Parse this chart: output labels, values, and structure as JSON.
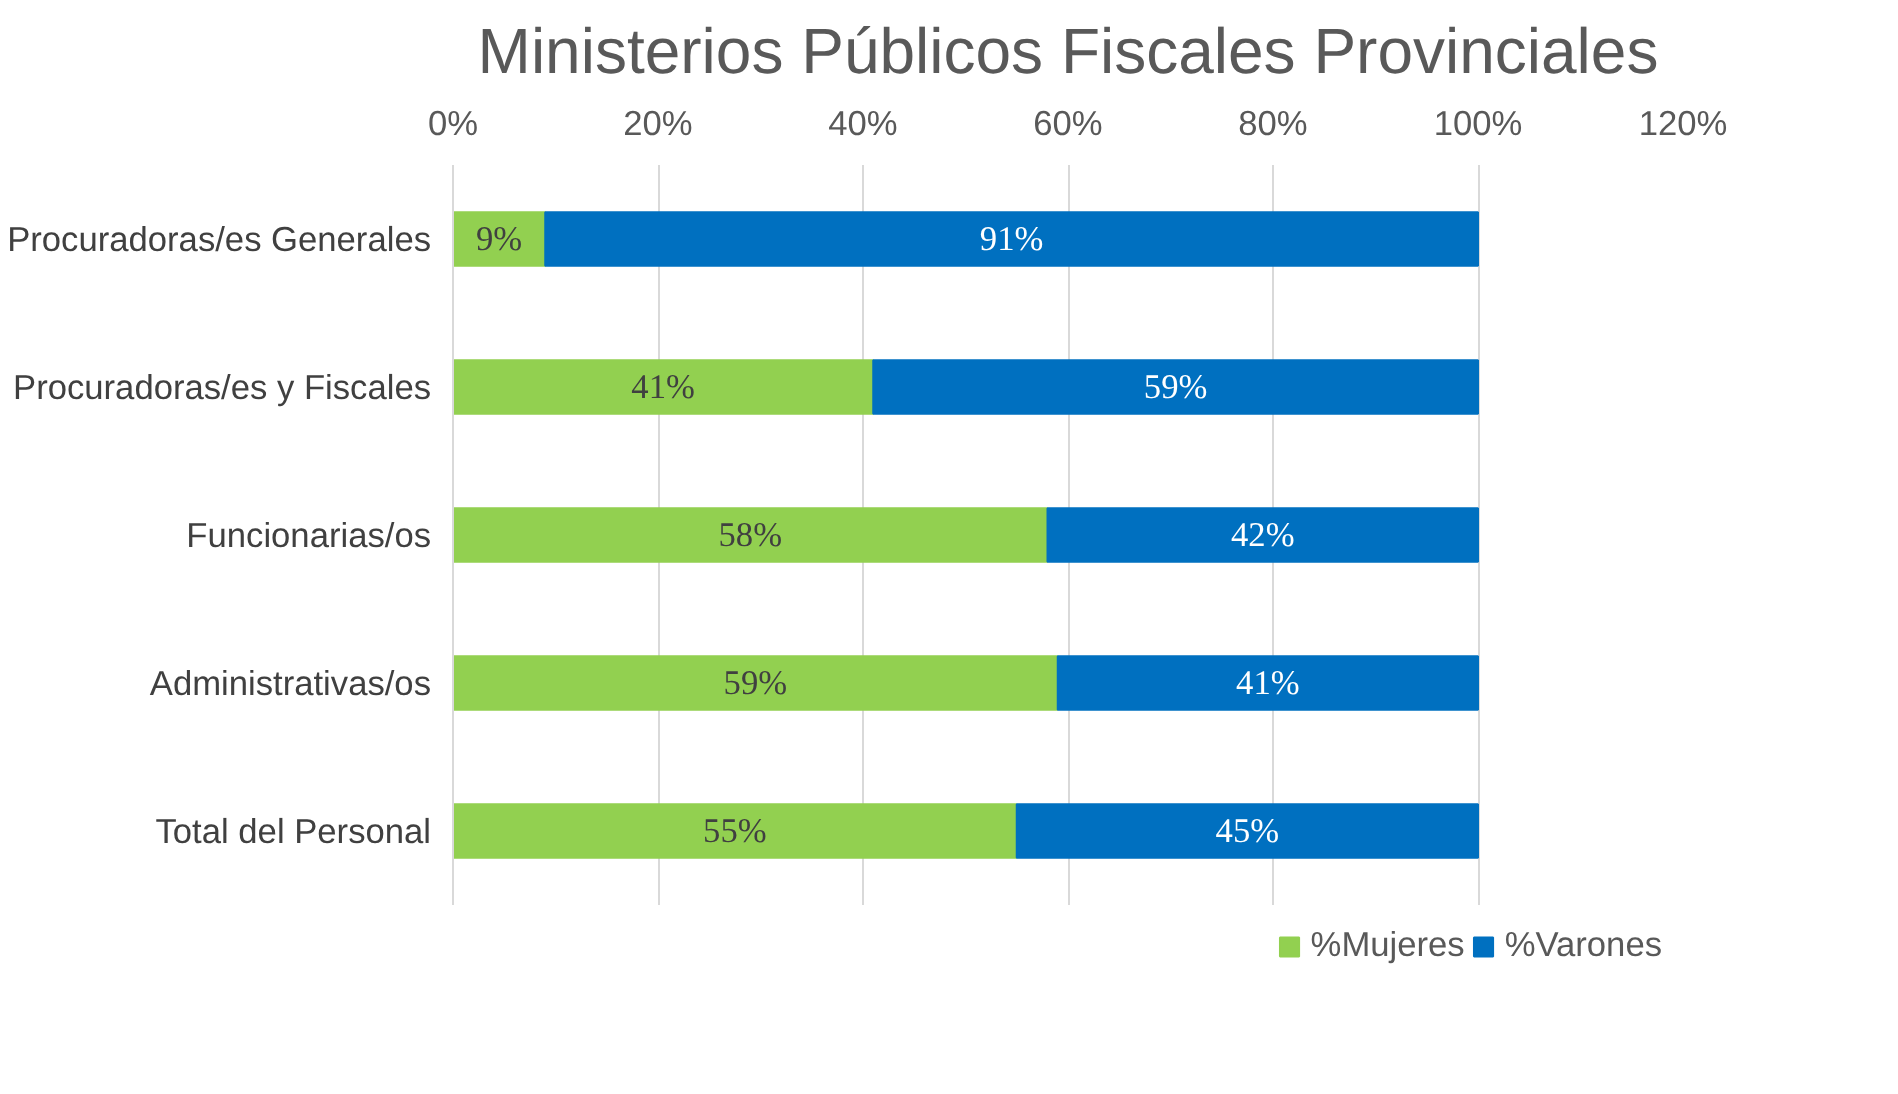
{
  "chart_data": {
    "type": "bar",
    "orientation": "horizontal",
    "stacked": true,
    "title": "Ministerios Públicos Fiscales Provinciales",
    "categories": [
      "Procuradoras/es Generales",
      "Procuradoras/es y Fiscales",
      "Funcionarias/os",
      "Administrativas/os",
      "Total del Personal"
    ],
    "series": [
      {
        "name": "%Mujeres",
        "color": "#92d050",
        "values": [
          9,
          41,
          58,
          59,
          55
        ],
        "value_labels": [
          "9%",
          "41%",
          "58%",
          "59%",
          "55%"
        ]
      },
      {
        "name": "%Varones",
        "color": "#0070c0",
        "values": [
          91,
          59,
          42,
          41,
          45
        ],
        "value_labels": [
          "91%",
          "59%",
          "42%",
          "41%",
          "45%"
        ]
      }
    ],
    "xlim": [
      0,
      120
    ],
    "xticks": [
      {
        "value": 0,
        "label": "0%"
      },
      {
        "value": 20,
        "label": "20%"
      },
      {
        "value": 40,
        "label": "40%"
      },
      {
        "value": 60,
        "label": "60%"
      },
      {
        "value": 80,
        "label": "80%"
      },
      {
        "value": 100,
        "label": "100%"
      },
      {
        "value": 120,
        "label": "120%"
      }
    ],
    "grid": "x",
    "legend": "bottom"
  }
}
